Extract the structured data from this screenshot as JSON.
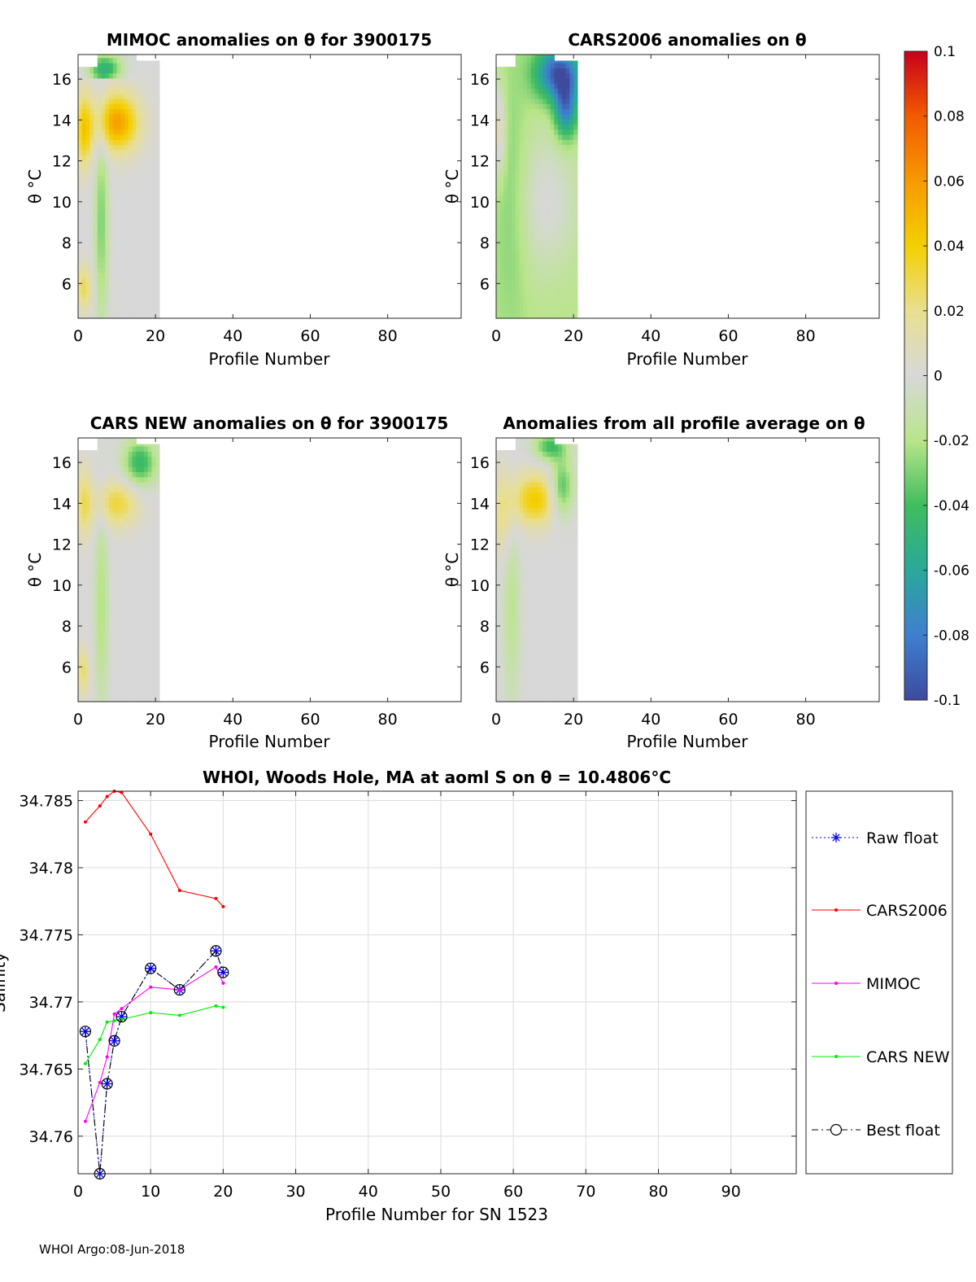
{
  "footer": "WHOI Argo:08-Jun-2018",
  "panels": [
    {
      "title": "MIMOC anomalies on θ  for 3900175",
      "xlabel": "Profile Number",
      "ylabel": "θ °C",
      "variant": "mimoc"
    },
    {
      "title": "CARS2006 anomalies on θ",
      "xlabel": "Profile Number",
      "ylabel": "θ °C",
      "variant": "cars2006"
    },
    {
      "title": "CARS NEW anomalies on θ for 3900175",
      "xlabel": "Profile Number",
      "ylabel": "θ °C",
      "variant": "carsnew"
    },
    {
      "title": "Anomalies from all profile average on θ",
      "xlabel": "Profile Number",
      "ylabel": "θ °C",
      "variant": "avg"
    }
  ],
  "panel_axes": {
    "x_range": [
      0,
      99
    ],
    "y_range": [
      4.3,
      17.2
    ],
    "x_ticks": [
      0,
      20,
      40,
      60,
      80
    ],
    "y_ticks": [
      6,
      8,
      10,
      12,
      14,
      16
    ],
    "data_profile_max": 21
  },
  "colorbar": {
    "range": [
      -0.1,
      0.1
    ],
    "ticks": [
      0.1,
      0.08,
      0.06,
      0.04,
      0.02,
      0,
      -0.02,
      -0.04,
      -0.06,
      -0.08,
      -0.1
    ],
    "tick_labels": [
      "0.1",
      "0.08",
      "0.06",
      "0.04",
      "0.02",
      "0",
      "-0.02",
      "-0.04",
      "-0.06",
      "-0.08",
      "-0.1"
    ],
    "colors": [
      "#3e4a9e",
      "#3f7fd0",
      "#2aa89a",
      "#3fbd5e",
      "#b9e58a",
      "#d8d8d8",
      "#e8df90",
      "#f4d000",
      "#f79a00",
      "#f25a00",
      "#c8001c"
    ]
  },
  "chart_data": {
    "type": "line",
    "title": "WHOI, Woods Hole, MA at aoml S on θ = 10.4806°C",
    "xlabel": "Profile Number for SN 1523",
    "ylabel": "Salinity",
    "xlim": [
      0,
      99
    ],
    "ylim": [
      34.7572,
      34.7857
    ],
    "x_ticks": [
      0,
      10,
      20,
      30,
      40,
      50,
      60,
      70,
      80,
      90
    ],
    "y_ticks": [
      34.76,
      34.765,
      34.77,
      34.775,
      34.78,
      34.785
    ],
    "grid": true,
    "legend_position": "outside-right",
    "series": [
      {
        "name": "Raw float",
        "color": "#0000ff",
        "style": "dotted-star",
        "x": [
          1,
          3,
          4,
          5,
          6,
          10,
          14,
          19,
          20
        ],
        "y": [
          34.7678,
          34.7572,
          34.7639,
          34.7671,
          34.7689,
          34.7725,
          34.7709,
          34.7738,
          34.7722
        ]
      },
      {
        "name": "CARS2006",
        "color": "#ff0000",
        "style": "solid-dot",
        "x": [
          1,
          3,
          4,
          5,
          6,
          10,
          14,
          19,
          20
        ],
        "y": [
          34.7834,
          34.7846,
          34.7853,
          34.7857,
          34.7856,
          34.7825,
          34.7783,
          34.7777,
          34.7771
        ]
      },
      {
        "name": "MIMOC",
        "color": "#ff00ff",
        "style": "solid-dot",
        "x": [
          1,
          3,
          4,
          5,
          6,
          10,
          14,
          19,
          20
        ],
        "y": [
          34.7611,
          34.764,
          34.7659,
          34.7691,
          34.7695,
          34.7711,
          34.7709,
          34.7726,
          34.7714
        ]
      },
      {
        "name": "CARS NEW",
        "color": "#00ee00",
        "style": "solid-dot",
        "x": [
          1,
          3,
          4,
          5,
          6,
          10,
          14,
          19,
          20
        ],
        "y": [
          34.7654,
          34.7672,
          34.7685,
          34.7686,
          34.7687,
          34.7692,
          34.769,
          34.7697,
          34.7696
        ]
      },
      {
        "name": "Best float",
        "color": "#000000",
        "style": "dashdot-circle",
        "x": [
          1,
          3,
          4,
          5,
          6,
          10,
          14,
          19,
          20
        ],
        "y": [
          34.7678,
          34.7572,
          34.7639,
          34.7671,
          34.7689,
          34.7725,
          34.7709,
          34.7738,
          34.7722
        ]
      }
    ]
  }
}
